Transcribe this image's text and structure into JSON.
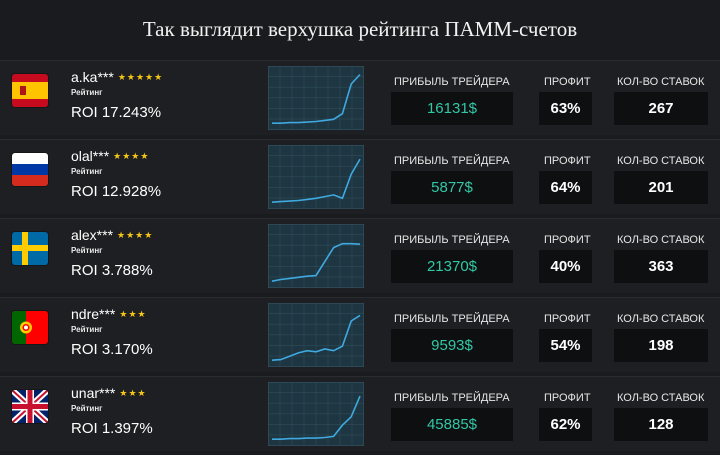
{
  "title": "Так выглядит верхушка рейтинга ПАММ-счетов",
  "columns": {
    "profit_label": "ПРИБЫЛЬ ТРЕЙДЕРА",
    "pct_label": "ПРОФИТ",
    "count_label": "КОЛ-ВО СТАВОК"
  },
  "traders": [
    {
      "name": "a.ka***",
      "flag": "spain-flag",
      "stars": "★★★★★",
      "rating_label": "Рейтинг",
      "roi": "ROI 17.243%",
      "profit": "16131$",
      "pct": "63%",
      "count": "267",
      "trend": [
        0.05,
        0.05,
        0.06,
        0.06,
        0.07,
        0.08,
        0.1,
        0.12,
        0.22,
        0.75,
        0.92
      ]
    },
    {
      "name": "olal***",
      "flag": "russia-flag",
      "stars": "★★★★",
      "rating_label": "Рейтинг",
      "roi": "ROI 12.928%",
      "profit": "5877$",
      "pct": "64%",
      "count": "201",
      "trend": [
        0.05,
        0.06,
        0.07,
        0.08,
        0.1,
        0.12,
        0.15,
        0.18,
        0.12,
        0.55,
        0.82
      ]
    },
    {
      "name": "alex***",
      "flag": "sweden-flag",
      "stars": "★★★★",
      "rating_label": "Рейтинг",
      "roi": "ROI 3.788%",
      "profit": "21370$",
      "pct": "40%",
      "count": "363",
      "trend": [
        0.05,
        0.08,
        0.1,
        0.12,
        0.14,
        0.15,
        0.4,
        0.65,
        0.72,
        0.72,
        0.71
      ]
    },
    {
      "name": "ndre***",
      "flag": "portugal-flag",
      "stars": "★★★",
      "rating_label": "Рейтинг",
      "roi": "ROI 3.170%",
      "profit": "9593$",
      "pct": "54%",
      "count": "198",
      "trend": [
        0.05,
        0.06,
        0.12,
        0.18,
        0.22,
        0.2,
        0.25,
        0.22,
        0.3,
        0.75,
        0.85
      ]
    },
    {
      "name": "unar***",
      "flag": "uk-flag",
      "stars": "★★★",
      "rating_label": "Рейтинг",
      "roi": "ROI 1.397%",
      "profit": "45885$",
      "pct": "62%",
      "count": "128",
      "trend": [
        0.05,
        0.05,
        0.06,
        0.06,
        0.07,
        0.07,
        0.08,
        0.1,
        0.3,
        0.45,
        0.82
      ]
    }
  ],
  "colors": {
    "background": "#191b1e",
    "profit_text": "#32c8a6",
    "spark_line": "#3fa9e0",
    "star": "#f5c518"
  }
}
